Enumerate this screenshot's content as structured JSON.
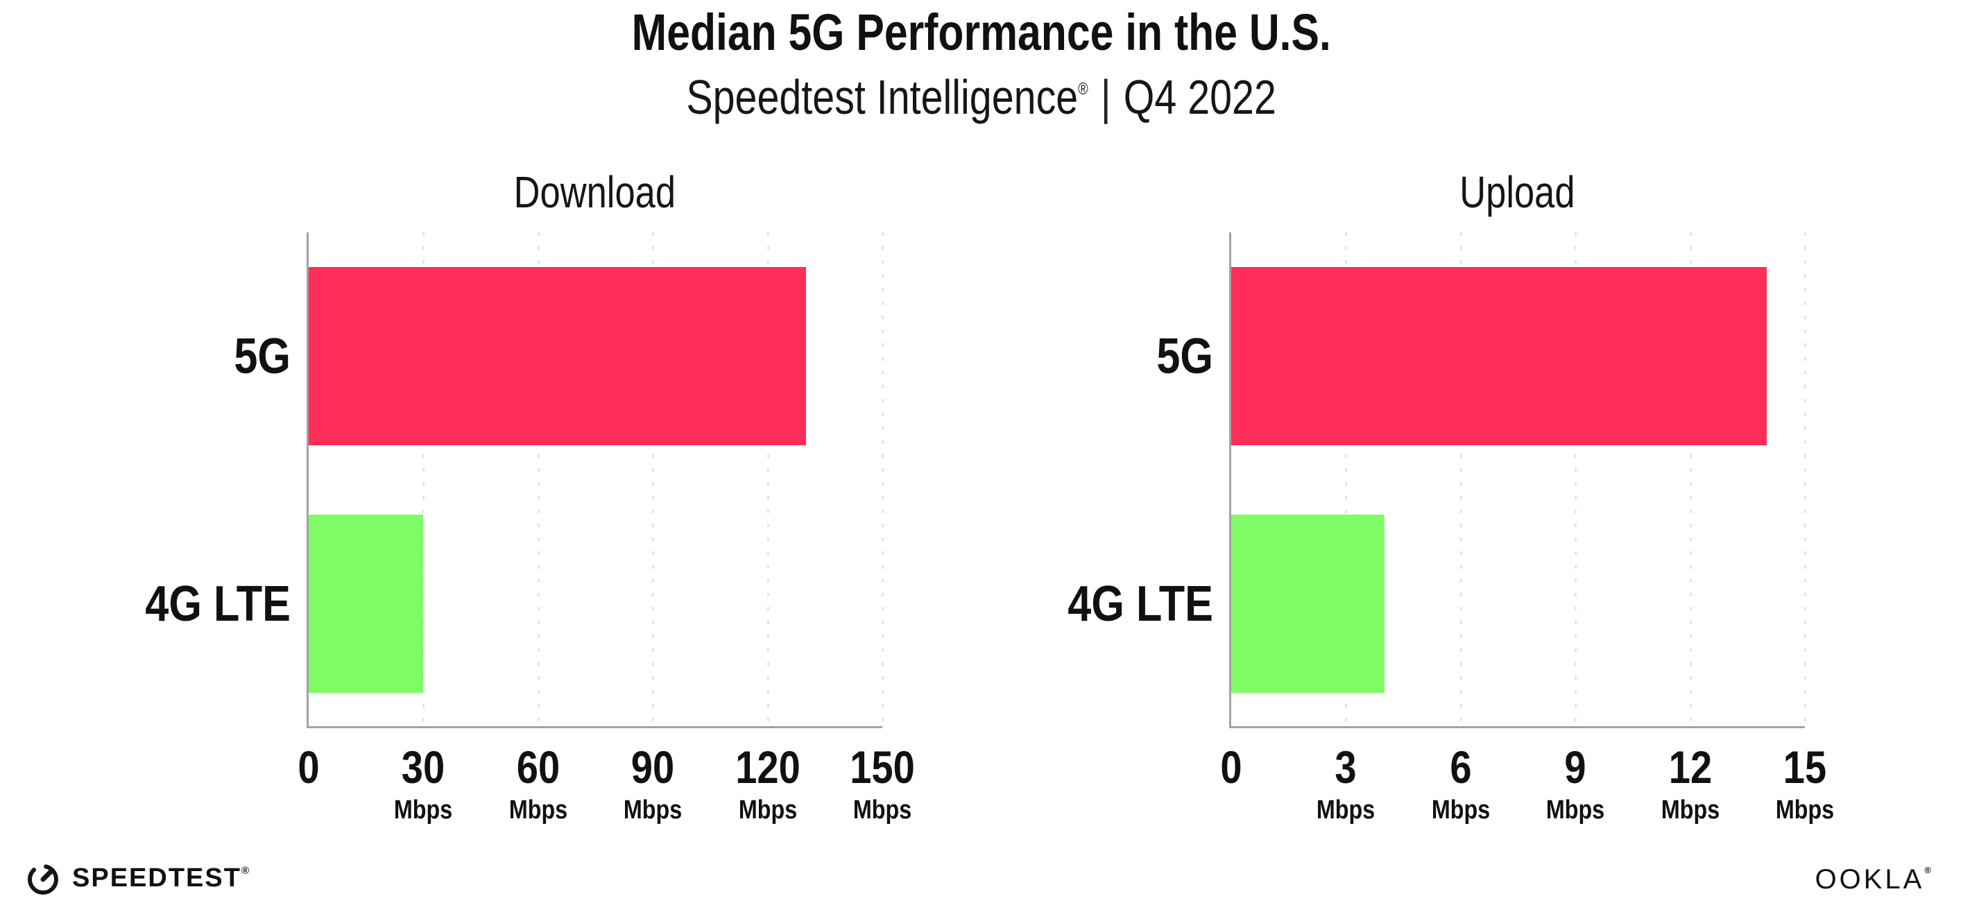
{
  "header": {
    "title": "Median 5G Performance in the U.S.",
    "subtitle_brand": "Speedtest Intelligence",
    "subtitle_reg": "®",
    "subtitle_divider": "|",
    "subtitle_period": "Q4 2022"
  },
  "chart_data": [
    {
      "type": "bar",
      "orientation": "horizontal",
      "title": "Download",
      "categories": [
        "5G",
        "4G LTE"
      ],
      "values": [
        130,
        30
      ],
      "bar_colors": [
        "#ff2d58",
        "#80fc66"
      ],
      "xlim": [
        0,
        150
      ],
      "xticks": [
        0,
        30,
        60,
        90,
        120,
        150
      ],
      "tick_unit_label": "Mbps",
      "grid": "dotted-vertical-at-each-tick",
      "legend": "none"
    },
    {
      "type": "bar",
      "orientation": "horizontal",
      "title": "Upload",
      "categories": [
        "5G",
        "4G LTE"
      ],
      "values": [
        14,
        4
      ],
      "bar_colors": [
        "#ff2d58",
        "#80fc66"
      ],
      "xlim": [
        0,
        15
      ],
      "xticks": [
        0,
        3,
        6,
        9,
        12,
        15
      ],
      "tick_unit_label": "Mbps",
      "grid": "dotted-vertical-at-each-tick",
      "legend": "none"
    }
  ],
  "footer": {
    "speedtest_label": "SPEEDTEST",
    "speedtest_reg": "®",
    "ookla_label": "OOKLA",
    "ookla_reg": "®"
  },
  "colors": {
    "bar_5g": "#ff2d58",
    "bar_4g": "#80fc66",
    "axis": "#a2a2a8",
    "gridline": "#e3e3ee",
    "text": "#111111"
  }
}
